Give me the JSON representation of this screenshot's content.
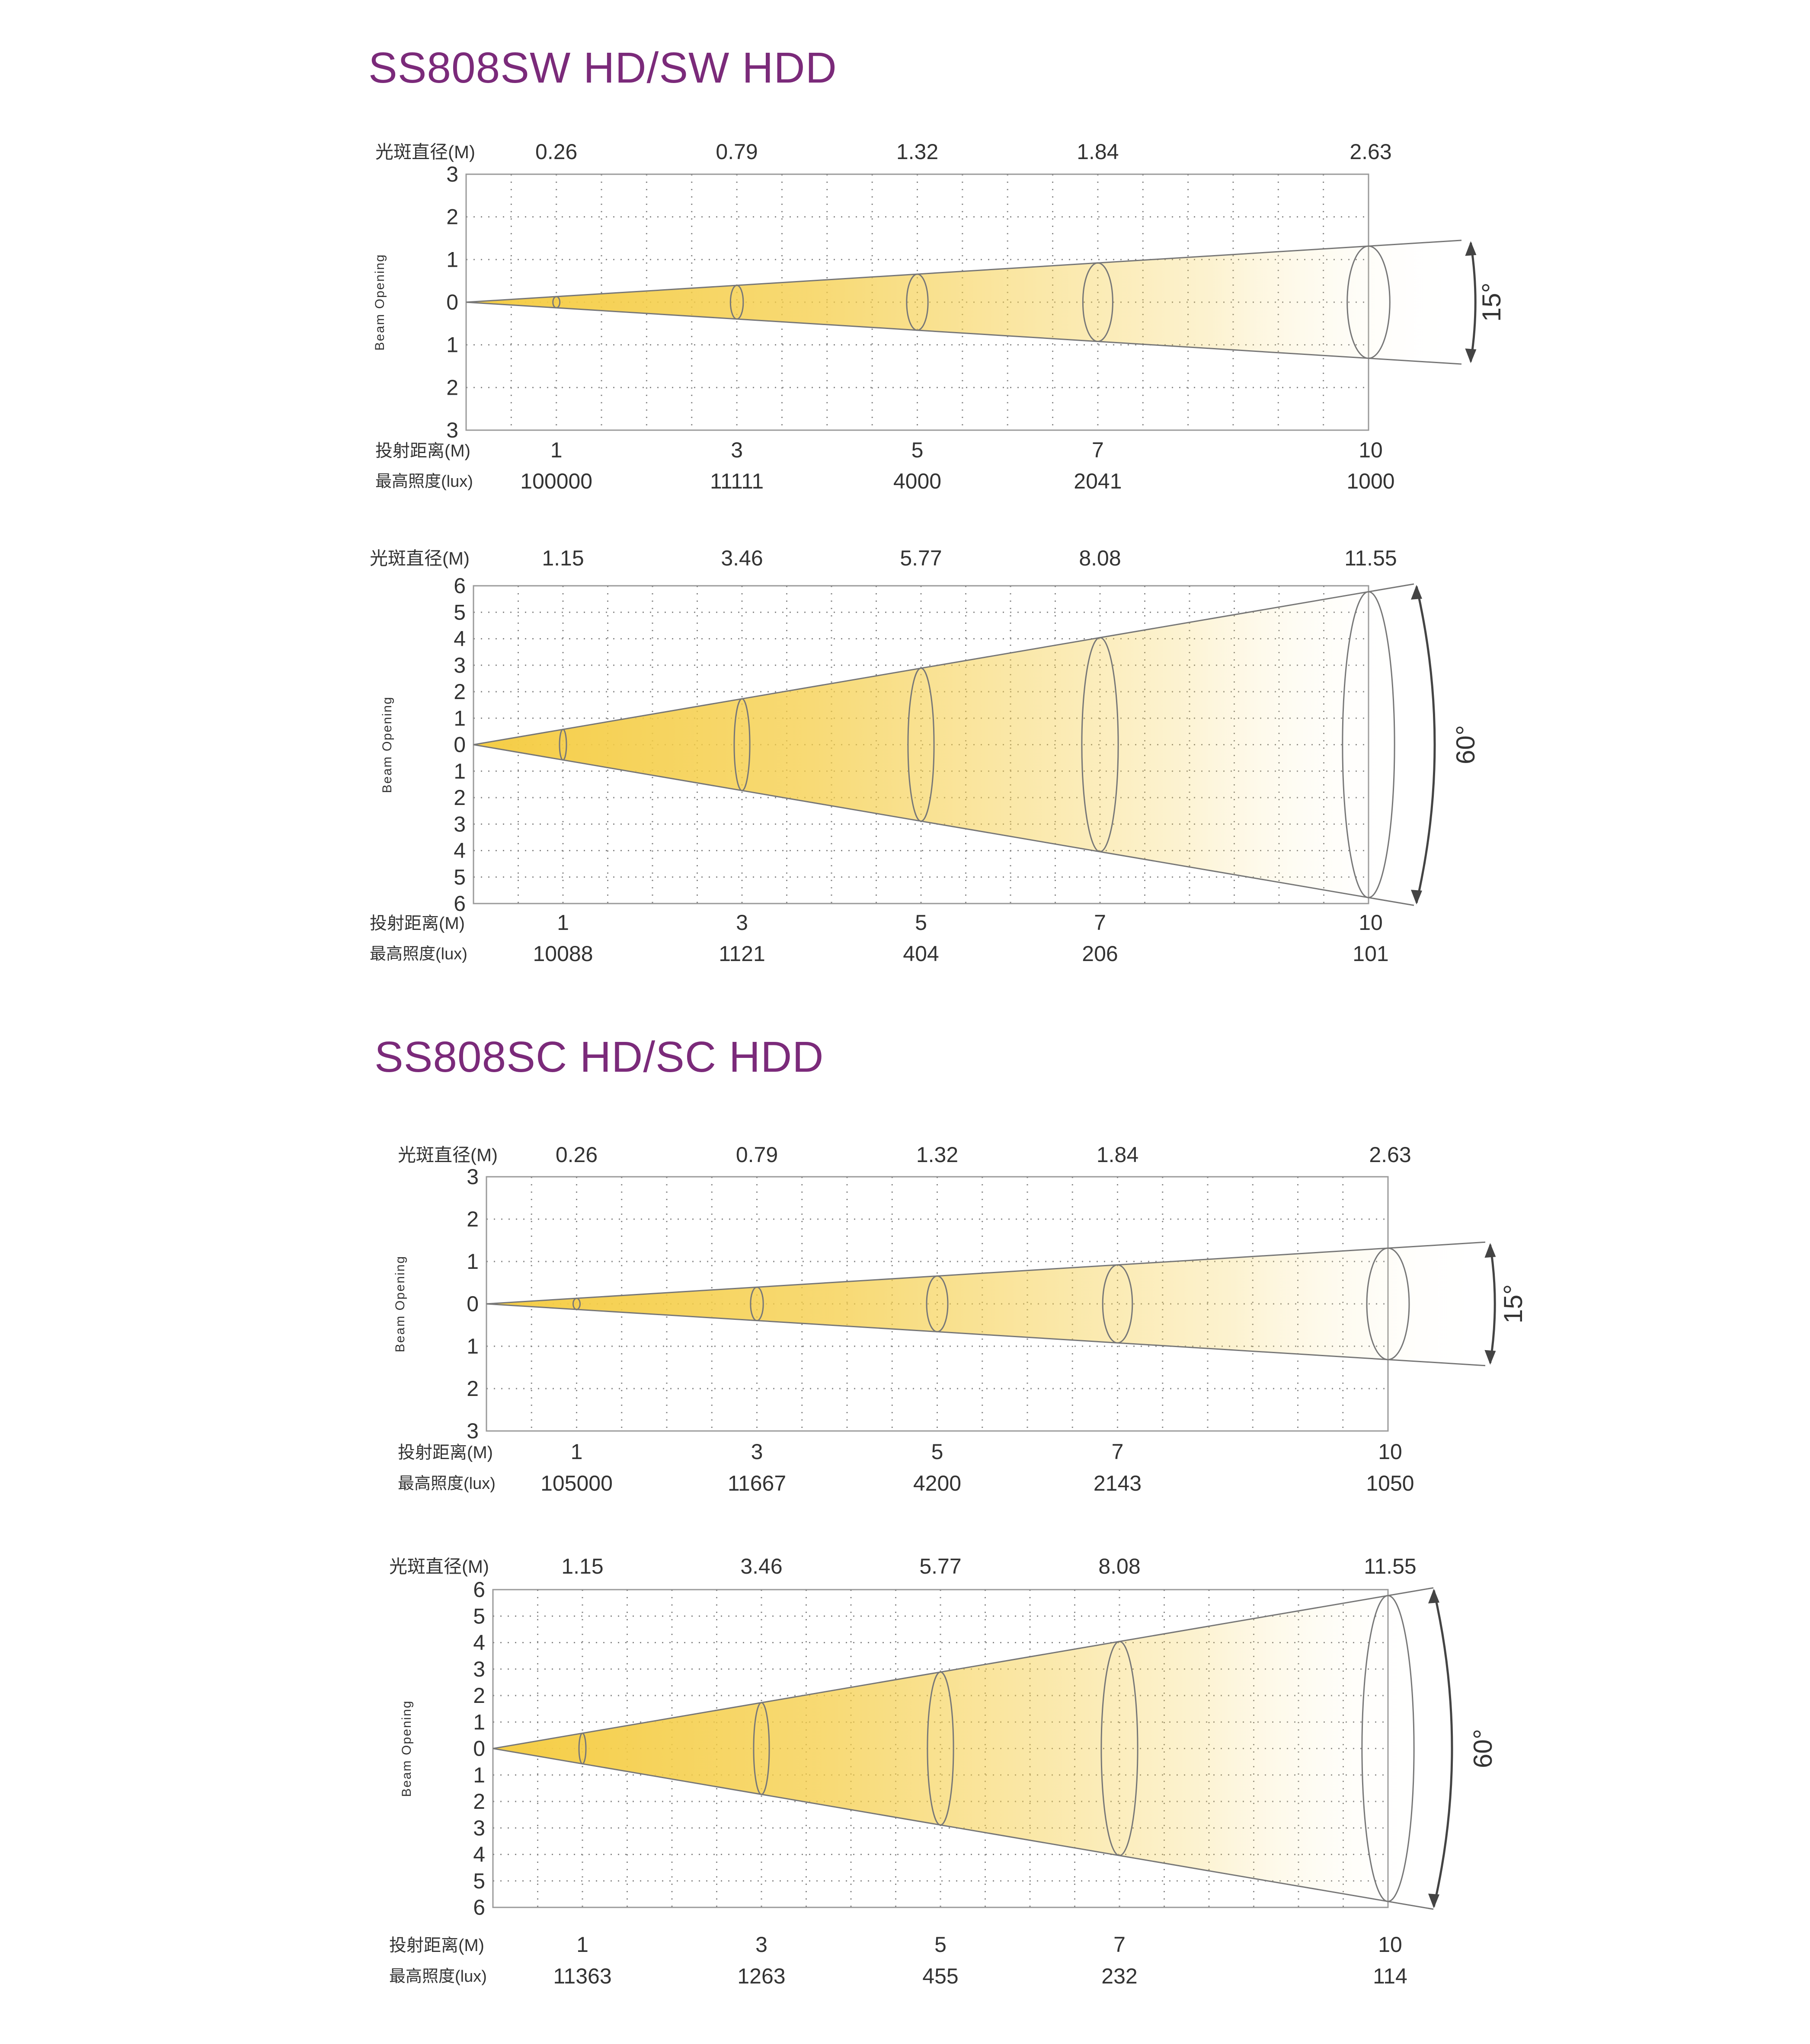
{
  "sections": [
    {
      "title": "SS808SW HD/SW HDD"
    },
    {
      "title": "SS808SC HD/SC HDD"
    }
  ],
  "labels": {
    "diameter": "光斑直径(M)",
    "distance": "投射距离(M)",
    "illuminance": "最高照度(lux)",
    "y_axis": "Beam Opening"
  },
  "colors": {
    "title": "#7b2a7a",
    "beam_near": "#f5cd45",
    "beam_far": "#ffffff",
    "grid": "#8a8a8a",
    "outline": "#777777"
  },
  "chart_data": [
    {
      "type": "area",
      "section": 0,
      "beam_angle": "15°",
      "ylabel": "Beam Opening",
      "y_ticks": [
        "3",
        "2",
        "1",
        "0",
        "1",
        "2",
        "3"
      ],
      "ylim": [
        -3,
        3
      ],
      "xlim": [
        0,
        10
      ],
      "x": [
        1,
        3,
        5,
        7,
        10
      ],
      "spot_diameter_m": [
        "0.26",
        "0.79",
        "1.32",
        "1.84",
        "2.63"
      ],
      "illuminance_lux": [
        "100000",
        "11111",
        "4000",
        "2041",
        "1000"
      ]
    },
    {
      "type": "area",
      "section": 0,
      "beam_angle": "60°",
      "ylabel": "Beam Opening",
      "y_ticks": [
        "6",
        "5",
        "4",
        "3",
        "2",
        "1",
        "0",
        "1",
        "2",
        "3",
        "4",
        "5",
        "6"
      ],
      "ylim": [
        -6,
        6
      ],
      "xlim": [
        0,
        10
      ],
      "x": [
        1,
        3,
        5,
        7,
        10
      ],
      "spot_diameter_m": [
        "1.15",
        "3.46",
        "5.77",
        "8.08",
        "11.55"
      ],
      "illuminance_lux": [
        "10088",
        "1121",
        "404",
        "206",
        "101"
      ]
    },
    {
      "type": "area",
      "section": 1,
      "beam_angle": "15°",
      "ylabel": "Beam Opening",
      "y_ticks": [
        "3",
        "2",
        "1",
        "0",
        "1",
        "2",
        "3"
      ],
      "ylim": [
        -3,
        3
      ],
      "xlim": [
        0,
        10
      ],
      "x": [
        1,
        3,
        5,
        7,
        10
      ],
      "spot_diameter_m": [
        "0.26",
        "0.79",
        "1.32",
        "1.84",
        "2.63"
      ],
      "illuminance_lux": [
        "105000",
        "11667",
        "4200",
        "2143",
        "1050"
      ]
    },
    {
      "type": "area",
      "section": 1,
      "beam_angle": "60°",
      "ylabel": "Beam Opening",
      "y_ticks": [
        "6",
        "5",
        "4",
        "3",
        "2",
        "1",
        "0",
        "1",
        "2",
        "3",
        "4",
        "5",
        "6"
      ],
      "ylim": [
        -6,
        6
      ],
      "xlim": [
        0,
        10
      ],
      "x": [
        1,
        3,
        5,
        7,
        10
      ],
      "spot_diameter_m": [
        "1.15",
        "3.46",
        "5.77",
        "8.08",
        "11.55"
      ],
      "illuminance_lux": [
        "11363",
        "1263",
        "455",
        "232",
        "114"
      ]
    }
  ]
}
